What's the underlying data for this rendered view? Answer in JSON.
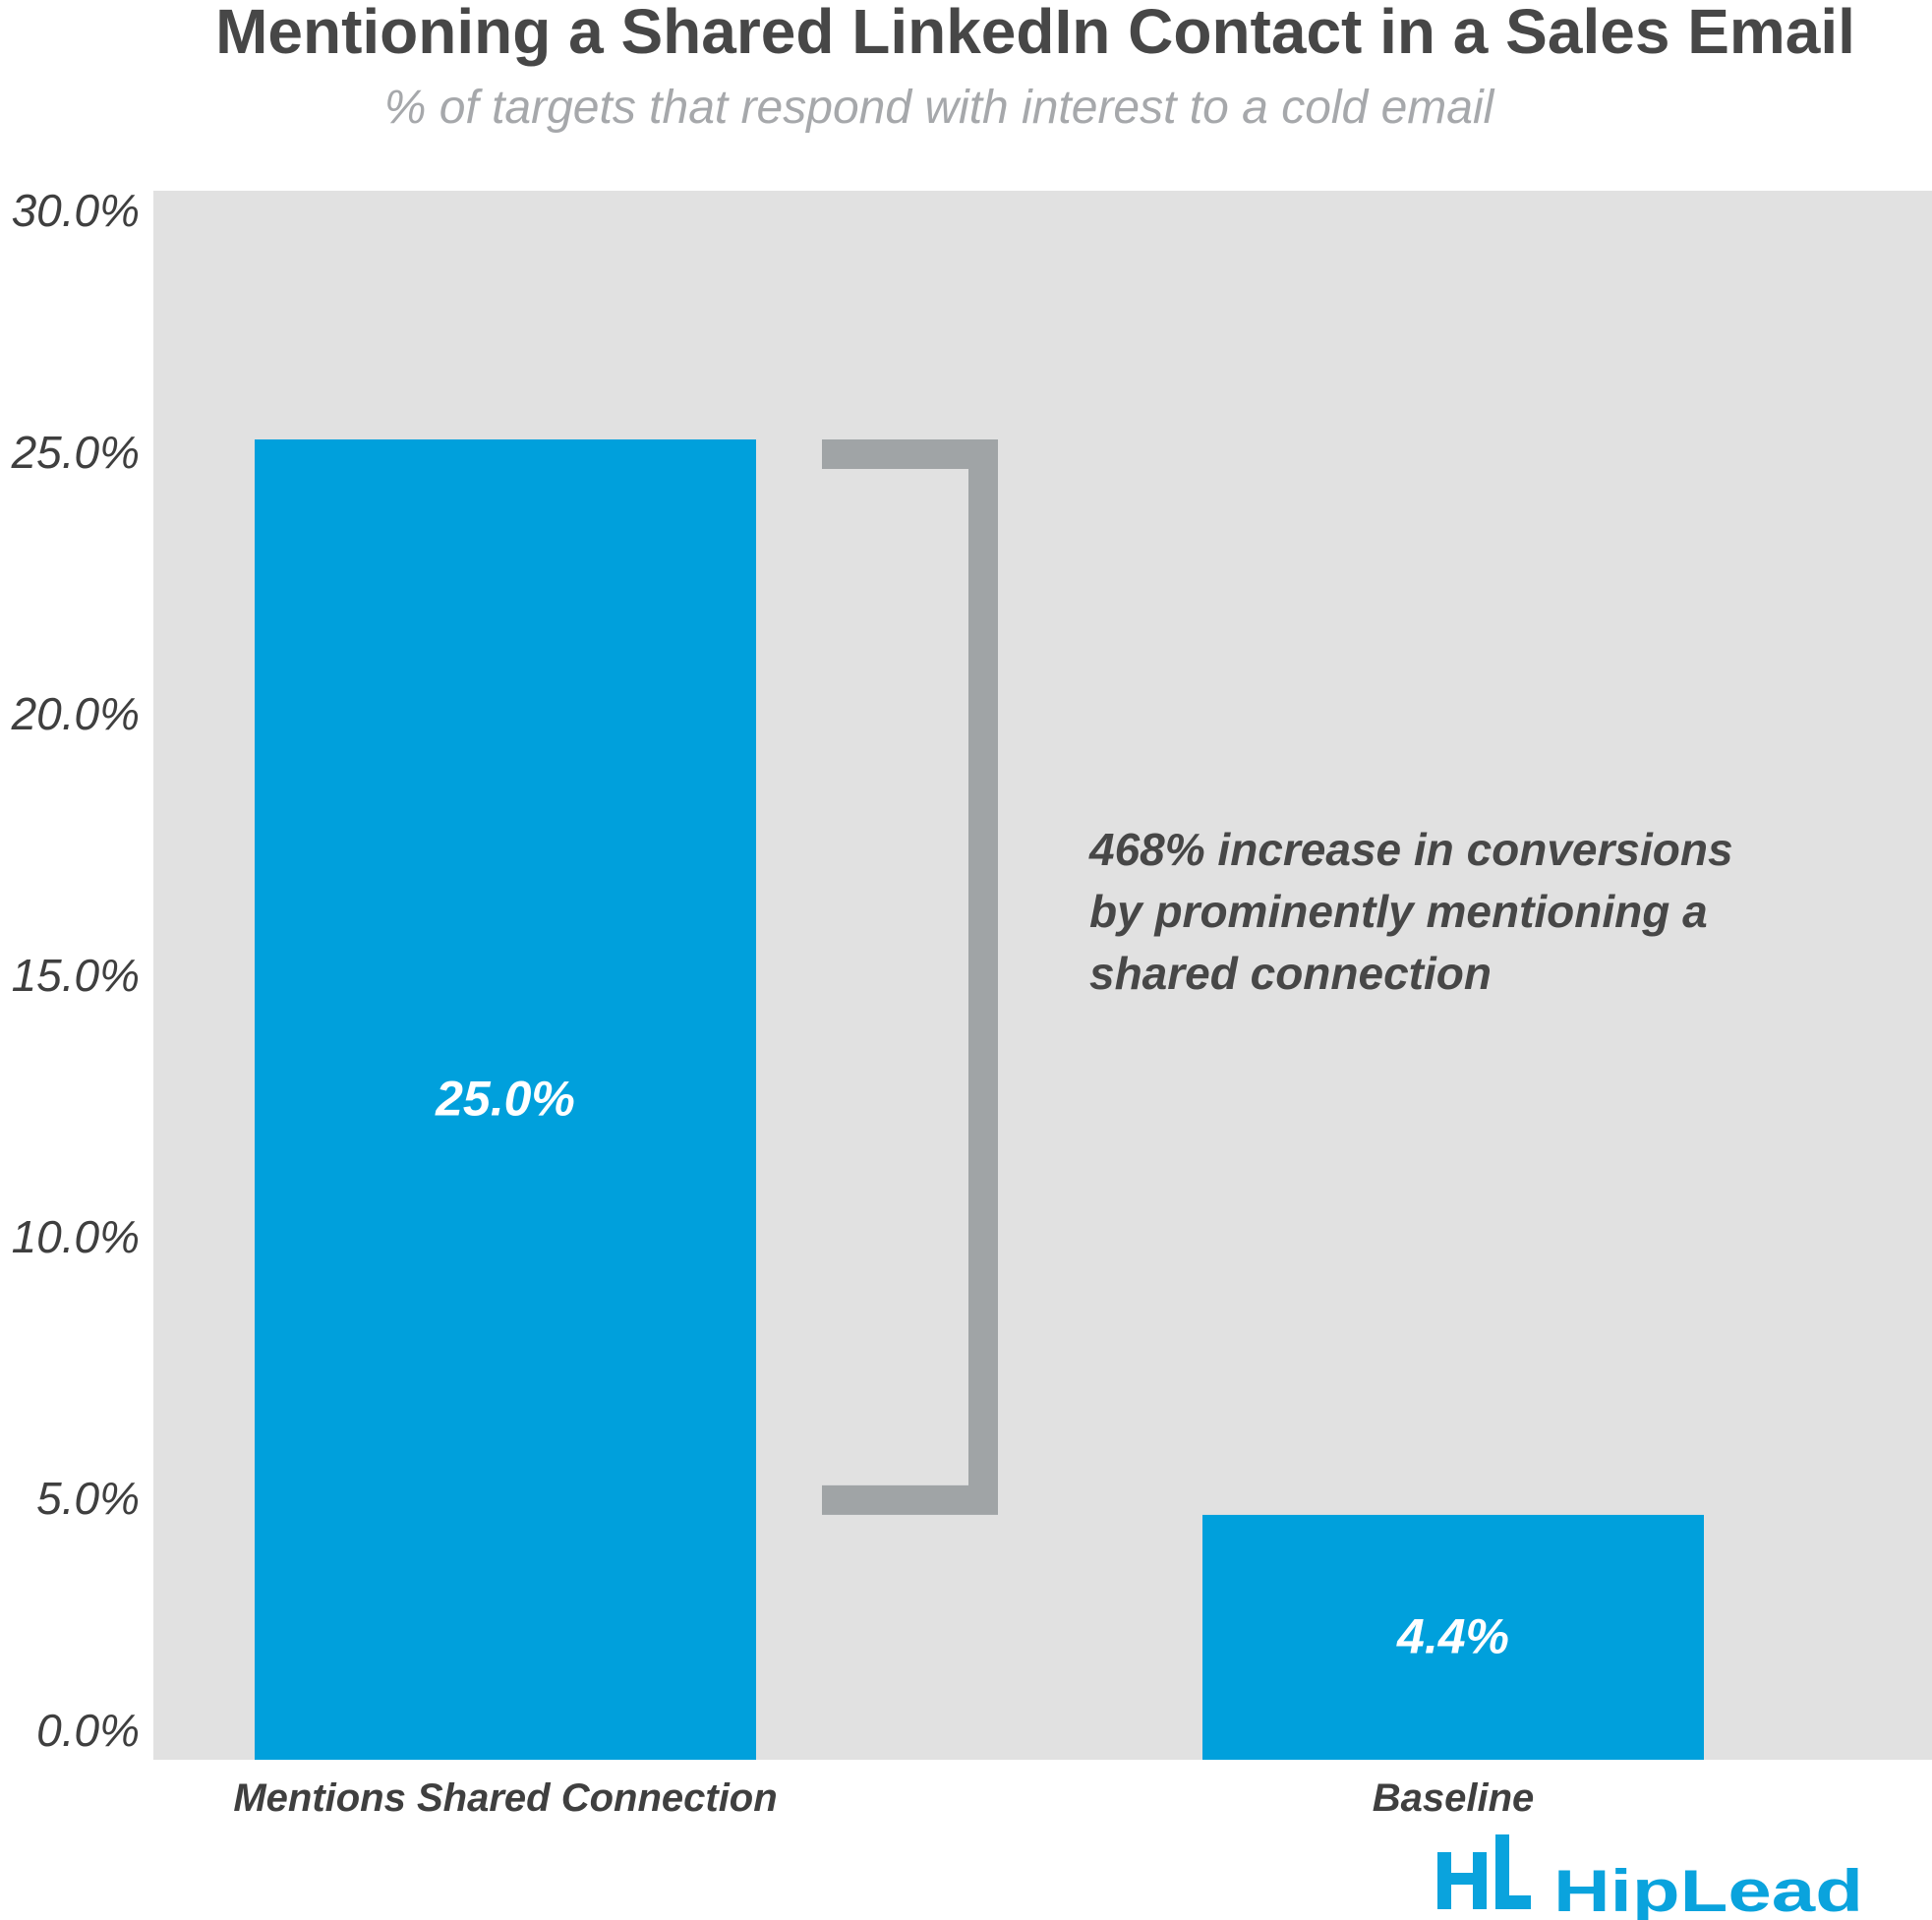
{
  "chart_data": {
    "type": "bar",
    "title": "Mentioning a Shared LinkedIn Contact in a Sales Email",
    "subtitle": "% of targets that respond with interest to a cold email",
    "categories": [
      "Mentions Shared Connection",
      "Baseline"
    ],
    "values": [
      25.0,
      4.4
    ],
    "data_labels": [
      "25.0%",
      "4.4%"
    ],
    "xlabel": "",
    "ylabel": "",
    "ylim": [
      0,
      30
    ],
    "yticks": [
      0,
      5,
      10,
      15,
      20,
      25,
      30
    ],
    "ytick_labels": [
      "0.0%",
      "5.0%",
      "10.0%",
      "15.0%",
      "20.0%",
      "25.0%",
      "30.0%"
    ],
    "grid": false,
    "legend": "none",
    "annotation": {
      "lines": [
        "468% increase in conversions",
        "by prominently mentioning a",
        "shared connection"
      ],
      "bracket_from": 4.4,
      "bracket_to": 25.0
    },
    "colors": {
      "bar": "#00a0dc",
      "plot_background": "#e1e1e1",
      "bracket": "#a0a4a6"
    }
  },
  "branding": {
    "logo_text": "HipLead",
    "logo_icon": "hiplead-bars-logo-icon",
    "logo_color": "#0aa3dd"
  }
}
